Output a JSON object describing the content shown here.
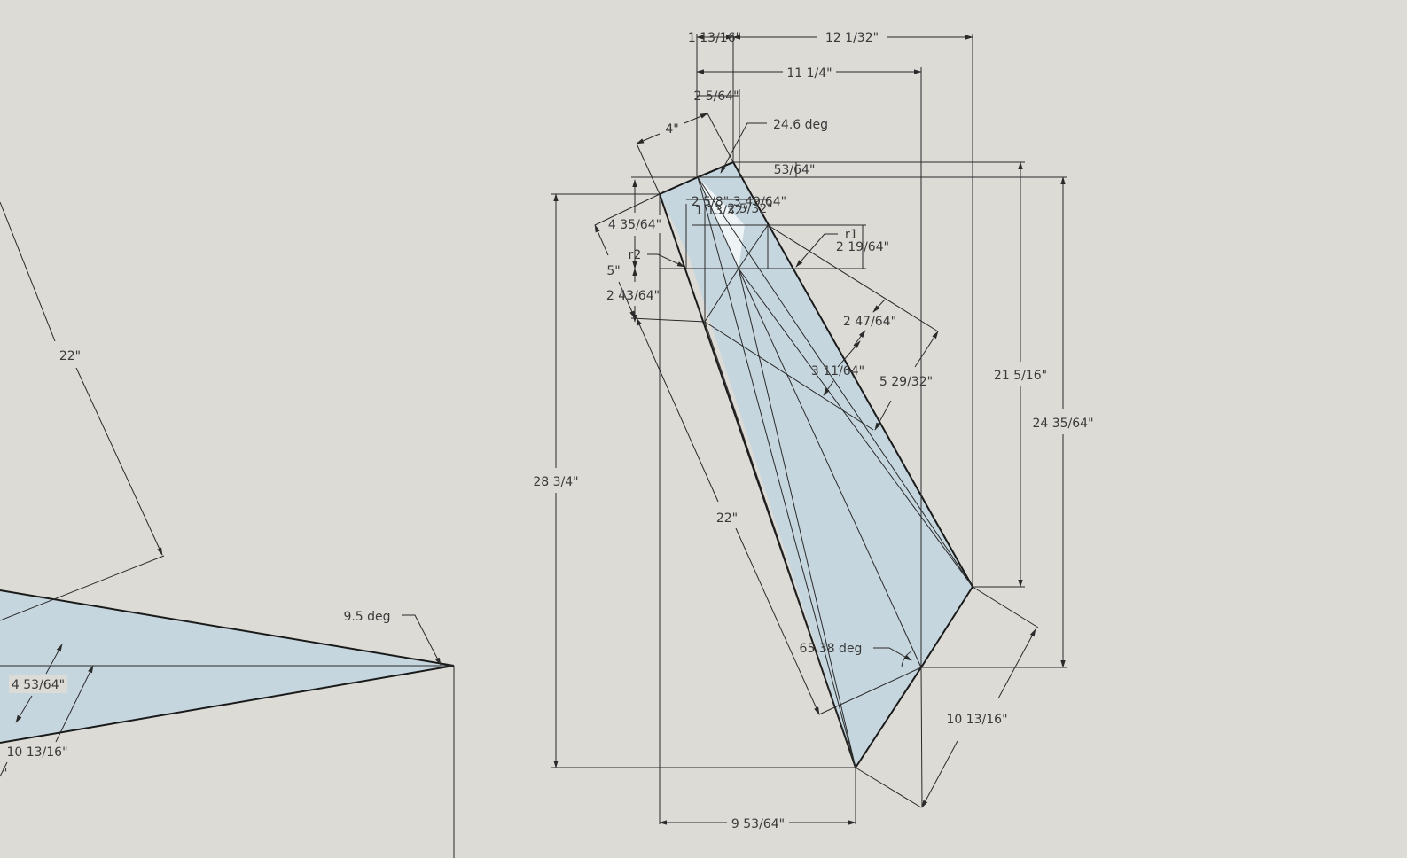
{
  "colors": {
    "background": "#dcdbd6",
    "face": "#c6d6df",
    "edge": "#1a1a1a",
    "text": "#3a3a3a"
  },
  "dimensions": {
    "d_1_13_16": "1 13/16\"",
    "d_12_1_32": "12 1/32\"",
    "d_11_1_4": "11 1/4\"",
    "d_2_5_64": "2 5/64\"",
    "d_4": "4\"",
    "a_24_6": "24.6 deg",
    "d_53_64": "53/64\"",
    "d_2_5_8": "2 5/8\"",
    "d_3_49_64": "3 49/64\"",
    "d_1_13_32": "1 13/32\"",
    "d_2_5_32": "2 5/32\"",
    "d_4_35_64": "4 35/64\"",
    "r2": "r2",
    "r1": "r1",
    "d_2_19_64": "2 19/64\"",
    "d_5": "5\"",
    "d_2_43_64": "2 43/64\"",
    "d_2_47_64": "2 47/64\"",
    "d_3_11_64": "3 11/64\"",
    "d_5_29_32": "5 29/32\"",
    "d_28_3_4": "28 3/4\"",
    "d_22_right": "22\"",
    "d_21_5_16": "21 5/16\"",
    "d_24_35_64": "24 35/64\"",
    "a_65_38": "65.38 deg",
    "d_10_13_16_right": "10 13/16\"",
    "d_9_53_64": "9 53/64\"",
    "d_22_left": "22\"",
    "a_9_5": "9.5 deg",
    "d_4_53_64": "4 53/64\"",
    "d_10_13_16_left": "10 13/16\"",
    "d_partial": "\""
  }
}
